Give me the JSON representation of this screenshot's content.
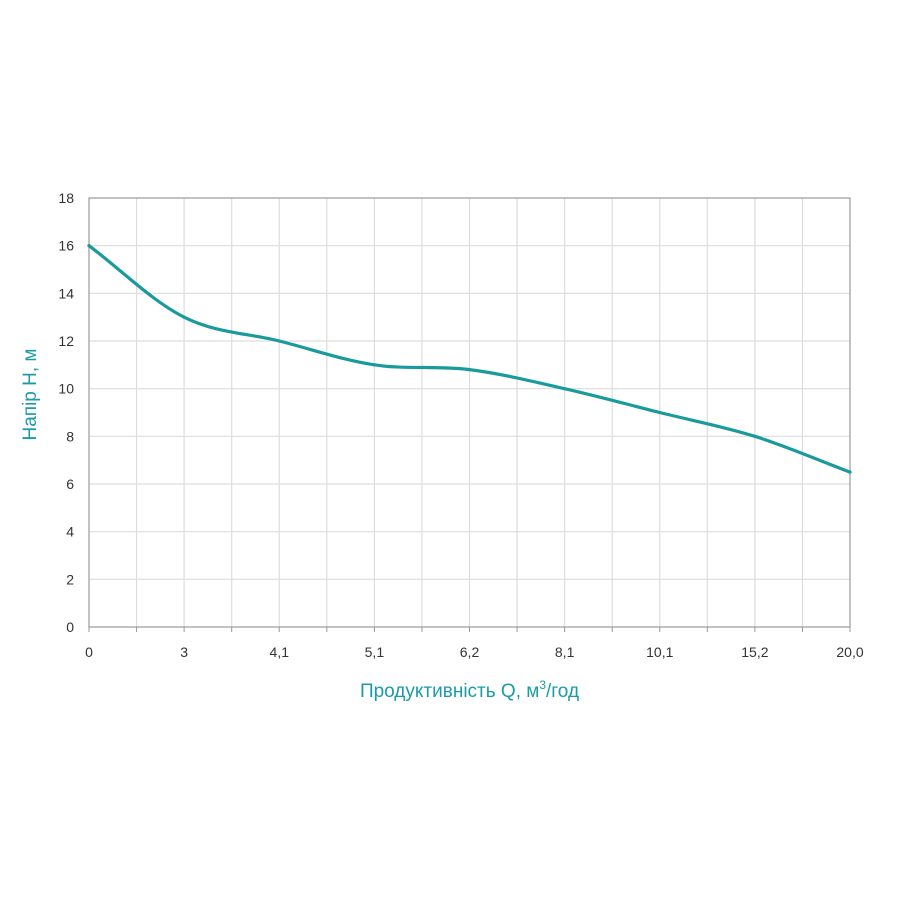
{
  "chart_data": {
    "type": "line",
    "xlabel": "Продуктивність Q, м",
    "xlabel_sup": "3",
    "xlabel_tail": "/год",
    "ylabel": "Напір H, м",
    "x_tick_labels": [
      "0",
      "3",
      "4,1",
      "5,1",
      "6,2",
      "8,1",
      "10,1",
      "15,2",
      "20,0"
    ],
    "y_ticks": [
      0,
      2,
      4,
      6,
      8,
      10,
      12,
      14,
      16,
      18
    ],
    "ylim": [
      0,
      18
    ],
    "grid": true,
    "series": [
      {
        "x": [
          "0",
          "3",
          "4,1",
          "5,1",
          "6,2",
          "8,1",
          "10,1",
          "15,2",
          "20,0"
        ],
        "values": [
          16,
          13,
          12,
          11,
          10.8,
          10,
          9,
          8,
          6.5
        ]
      }
    ],
    "colors": {
      "line": "#1a9a9c",
      "axis_title": "#1a9ca8",
      "grid": "#dddddd",
      "frame": "#999999",
      "tick_text": "#333333"
    }
  }
}
